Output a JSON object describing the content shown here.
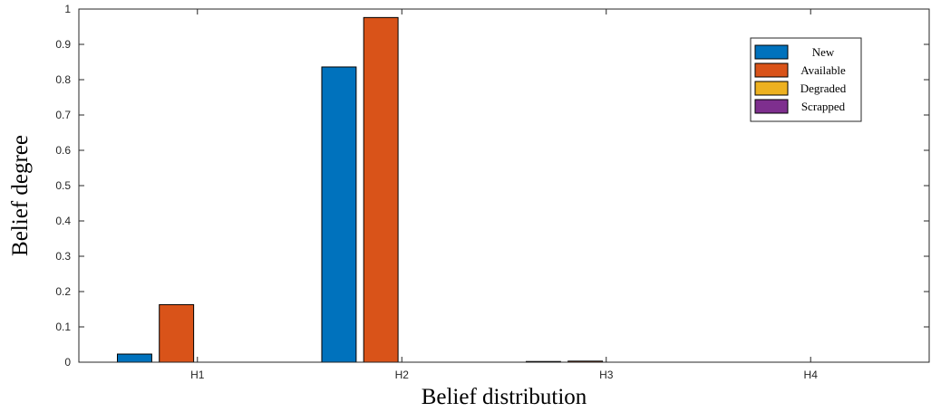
{
  "chart_data": {
    "type": "bar",
    "title": "",
    "xlabel": "Belief distribution",
    "ylabel": "Belief degree",
    "categories": [
      "H1",
      "H2",
      "H3",
      "H4"
    ],
    "series": [
      {
        "name": "New",
        "color": "#0072BD",
        "values": [
          0.023,
          0.836,
          0.002,
          0.0
        ]
      },
      {
        "name": "Available",
        "color": "#D95319",
        "values": [
          0.163,
          0.976,
          0.003,
          0.0
        ]
      },
      {
        "name": "Degraded",
        "color": "#EDB120",
        "values": [
          0.0,
          0.0,
          0.0,
          0.0
        ]
      },
      {
        "name": "Scrapped",
        "color": "#7E2F8E",
        "values": [
          0.0,
          0.0,
          0.0,
          0.0
        ]
      }
    ],
    "ylim": [
      0,
      1
    ],
    "yticks": [
      "0",
      "0.1",
      "0.2",
      "0.3",
      "0.4",
      "0.5",
      "0.6",
      "0.7",
      "0.8",
      "0.9",
      "1"
    ],
    "legend_position": "top-right",
    "grid": false
  }
}
